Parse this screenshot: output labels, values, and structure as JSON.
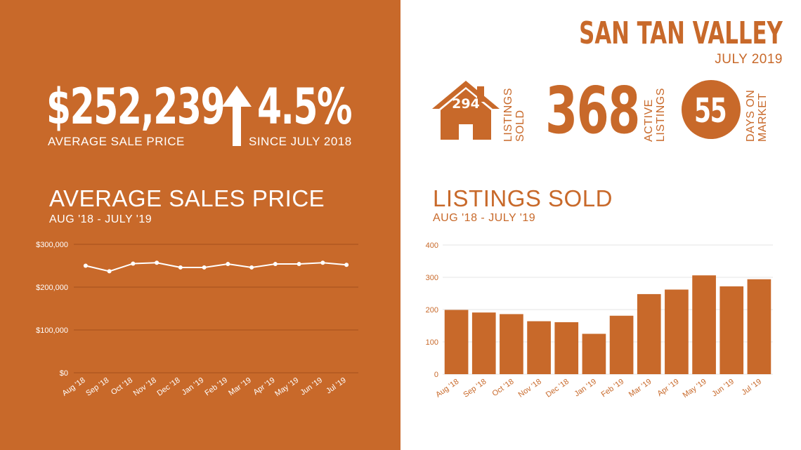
{
  "left": {
    "avg_price": "$252,239",
    "avg_price_label": "AVERAGE  SALE PRICE",
    "change_pct": "4.5%",
    "change_label": "SINCE JULY 2018",
    "chart_title": "AVERAGE SALES PRICE",
    "chart_subtitle": "AUG '18 - JULY '19"
  },
  "right": {
    "brand_title": "SAN TAN VALLEY",
    "date": "JULY 2019",
    "listings_sold_value": "294",
    "listings_sold_label_1": "LISTINGS",
    "listings_sold_label_2": "SOLD",
    "active_listings_value": "368",
    "active_listings_label_1": "ACTIVE",
    "active_listings_label_2": "LISTINGS",
    "days_on_market_value": "55",
    "days_on_market_label_1": "DAYS ON",
    "days_on_market_label_2": "MARKET",
    "chart_title": "LISTINGS SOLD",
    "chart_subtitle": "AUG '18 - JULY '19"
  },
  "colors": {
    "accent": "#c8692a",
    "white": "#ffffff"
  },
  "icons": [
    "house-icon",
    "arrow-up-icon",
    "circle-badge-icon"
  ],
  "chart_data": [
    {
      "type": "line",
      "categories": [
        "Aug '18",
        "Sep '18",
        "Oct '18",
        "Nov '18",
        "Dec '18",
        "Jan '19",
        "Feb '19",
        "Mar '19",
        "Apr '19",
        "May '19",
        "Jun '19",
        "Jul '19"
      ],
      "values": [
        250000,
        237000,
        255000,
        257000,
        246000,
        246000,
        254000,
        246000,
        254000,
        254000,
        257000,
        252000
      ],
      "title": "AVERAGE SALES PRICE",
      "subtitle": "AUG '18 - JULY '19",
      "ylim": [
        0,
        300000
      ],
      "yticks": [
        0,
        100000,
        200000,
        300000
      ],
      "ytick_labels": [
        "$0",
        "$100,000",
        "$200,000",
        "$300,000"
      ],
      "grid": true
    },
    {
      "type": "bar",
      "categories": [
        "Aug '18",
        "Sep '18",
        "Oct '18",
        "Nov '18",
        "Dec '18",
        "Jan '19",
        "Feb '19",
        "Mar '19",
        "Apr '19",
        "May '19",
        "Jun '19",
        "Jul '19"
      ],
      "values": [
        199,
        191,
        186,
        164,
        161,
        125,
        181,
        248,
        262,
        306,
        272,
        294
      ],
      "title": "LISTINGS SOLD",
      "subtitle": "AUG '18 - JULY '19",
      "ylim": [
        0,
        400
      ],
      "yticks": [
        0,
        100,
        200,
        300,
        400
      ],
      "ytick_labels": [
        "0",
        "100",
        "200",
        "300",
        "400"
      ],
      "grid": true
    }
  ]
}
